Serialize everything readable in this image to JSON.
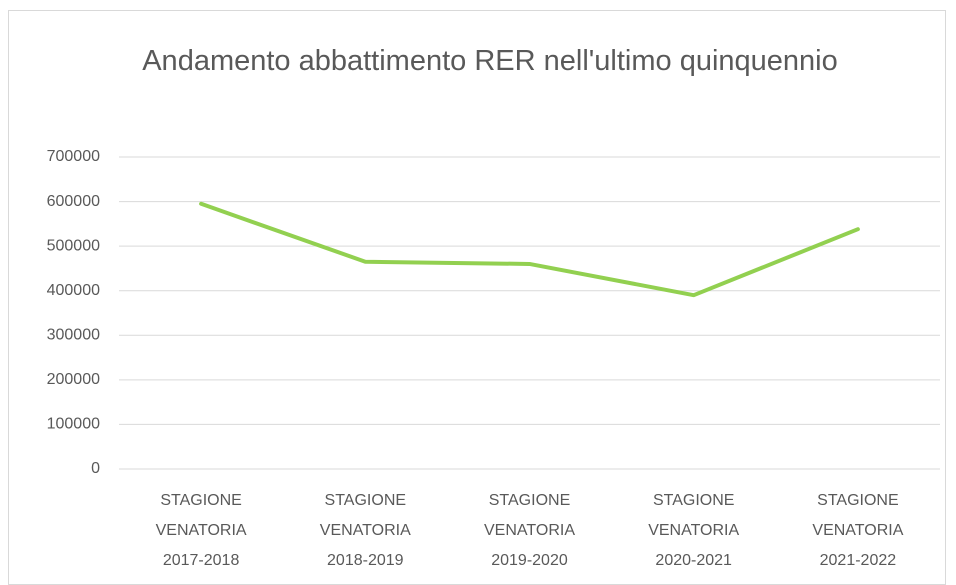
{
  "chart_data": {
    "type": "line",
    "title": "Andamento abbattimento RER nell'ultimo quinquennio",
    "categories": [
      "STAGIONE VENATORIA 2017-2018",
      "STAGIONE VENATORIA 2018-2019",
      "STAGIONE VENATORIA 2019-2020",
      "STAGIONE VENATORIA 2020-2021",
      "STAGIONE VENATORIA 2021-2022"
    ],
    "values": [
      595000,
      465000,
      460000,
      390000,
      538000
    ],
    "color": "#92d050",
    "ylim": [
      0,
      700000
    ],
    "yticks": [
      0,
      100000,
      200000,
      300000,
      400000,
      500000,
      600000,
      700000
    ],
    "grid": true
  }
}
